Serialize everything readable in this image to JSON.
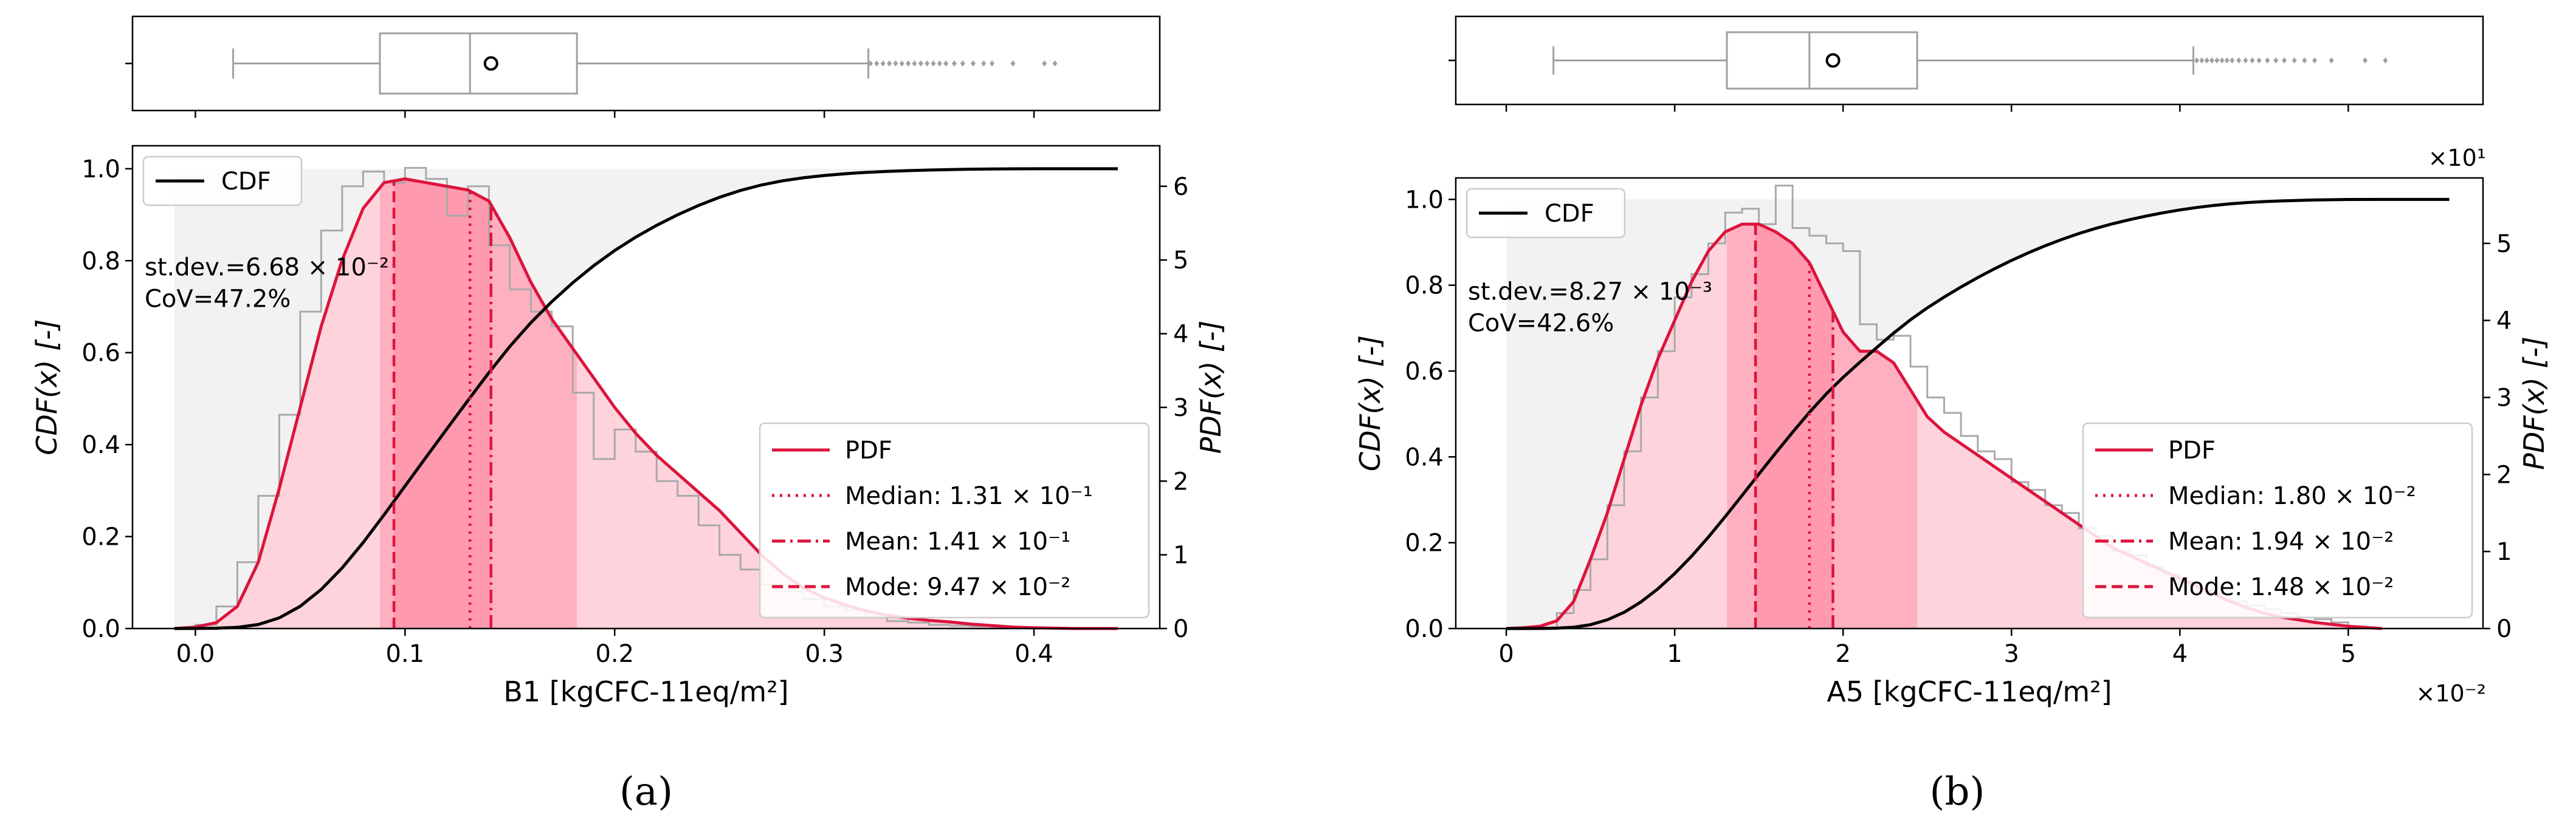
{
  "colors": {
    "pdf": "#dc143c",
    "fill_light": "#ffd3dc",
    "fill_iqr": "#ffb0c0",
    "fill_center": "#ff99ae",
    "hist": "#a9a9a9",
    "cdf": "#000000",
    "cdf_bg": "#f2f2f2",
    "box": "#a0a0a0"
  },
  "chart_data": [
    {
      "panel": "a",
      "caption": "(a)",
      "type": "histogram-kde-cdf",
      "xlabel": "B1 [kgCFC-11eq/m²]",
      "ylabel_left": "CDF(x) [-]",
      "ylabel_right": "PDF(x) [-]",
      "xlim": [
        -0.03,
        0.46
      ],
      "xticks": [
        0.0,
        0.1,
        0.2,
        0.3,
        0.4
      ],
      "xtick_labels": [
        "0.0",
        "0.1",
        "0.2",
        "0.3",
        "0.4"
      ],
      "x_exponent": "",
      "ylim_left": [
        0,
        1.05
      ],
      "yticks_left": [
        0.0,
        0.2,
        0.4,
        0.6,
        0.8,
        1.0
      ],
      "ytick_labels_left": [
        "0.0",
        "0.2",
        "0.4",
        "0.6",
        "0.8",
        "1.0"
      ],
      "ylim_right": [
        0,
        6.55
      ],
      "yticks_right": [
        0,
        1,
        2,
        3,
        4,
        5,
        6
      ],
      "ytick_labels_right": [
        "0",
        "1",
        "2",
        "3",
        "4",
        "5",
        "6"
      ],
      "right_exponent": "",
      "cdf_legend": "CDF",
      "stats_lines": [
        "st.dev.=6.68 × 10⁻²",
        "CoV=47.2%"
      ],
      "legend": [
        {
          "style": "solid",
          "label": "PDF"
        },
        {
          "style": "dotted",
          "label": "Median: 1.31 × 10⁻¹"
        },
        {
          "style": "dashdot",
          "label": "Mean: 1.41 × 10⁻¹"
        },
        {
          "style": "dashed",
          "label": "Mode: 9.47 × 10⁻²"
        }
      ],
      "median": 0.131,
      "mean": 0.141,
      "mode": 0.0947,
      "q1": 0.088,
      "q3": 0.182,
      "data_max": 0.44,
      "box": {
        "whisker_low": 0.018,
        "q1": 0.088,
        "median": 0.131,
        "q3": 0.182,
        "whisker_high": 0.321,
        "mean": 0.141,
        "outliers": [
          0.322,
          0.325,
          0.328,
          0.331,
          0.334,
          0.337,
          0.34,
          0.343,
          0.346,
          0.349,
          0.352,
          0.355,
          0.358,
          0.362,
          0.366,
          0.371,
          0.376,
          0.38,
          0.39,
          0.405,
          0.41
        ]
      },
      "pdf_x": [
        -0.01,
        0.0,
        0.01,
        0.02,
        0.03,
        0.04,
        0.05,
        0.06,
        0.07,
        0.08,
        0.09,
        0.1,
        0.11,
        0.12,
        0.13,
        0.14,
        0.15,
        0.16,
        0.17,
        0.18,
        0.19,
        0.2,
        0.21,
        0.22,
        0.23,
        0.24,
        0.25,
        0.26,
        0.27,
        0.28,
        0.29,
        0.3,
        0.31,
        0.32,
        0.33,
        0.34,
        0.35,
        0.36,
        0.37,
        0.38,
        0.39,
        0.4,
        0.41,
        0.42,
        0.43,
        0.44
      ],
      "pdf_y": [
        0.0,
        0.02,
        0.08,
        0.3,
        0.9,
        1.9,
        3.0,
        4.1,
        5.0,
        5.7,
        6.05,
        6.1,
        6.05,
        6.0,
        5.95,
        5.8,
        5.3,
        4.7,
        4.2,
        3.8,
        3.4,
        3.0,
        2.65,
        2.35,
        2.1,
        1.85,
        1.6,
        1.3,
        1.0,
        0.75,
        0.55,
        0.42,
        0.32,
        0.24,
        0.18,
        0.14,
        0.11,
        0.09,
        0.06,
        0.04,
        0.02,
        0.01,
        0.005,
        0.0,
        0.0,
        0.0
      ],
      "hist_edges": [
        0.0,
        0.01,
        0.02,
        0.03,
        0.04,
        0.05,
        0.06,
        0.07,
        0.08,
        0.09,
        0.1,
        0.11,
        0.12,
        0.13,
        0.14,
        0.15,
        0.16,
        0.17,
        0.18,
        0.19,
        0.2,
        0.21,
        0.22,
        0.23,
        0.24,
        0.25,
        0.26,
        0.27,
        0.28,
        0.29,
        0.3,
        0.31,
        0.32,
        0.33,
        0.34,
        0.35,
        0.36,
        0.37,
        0.38,
        0.39,
        0.4
      ],
      "hist_y": [
        0.05,
        0.3,
        0.9,
        1.8,
        2.9,
        4.3,
        5.4,
        6.0,
        6.2,
        6.05,
        6.25,
        6.1,
        5.6,
        6.0,
        5.2,
        4.6,
        4.3,
        4.1,
        3.2,
        2.3,
        2.7,
        2.4,
        2.0,
        1.8,
        1.4,
        1.0,
        0.8,
        0.6,
        0.5,
        0.4,
        0.3,
        0.25,
        0.15,
        0.1,
        0.08,
        0.05,
        0.04,
        0.03,
        0.02,
        0.01
      ]
    },
    {
      "panel": "b",
      "caption": "(b)",
      "type": "histogram-kde-cdf",
      "xlabel": "A5 [kgCFC-11eq/m²]",
      "ylabel_left": "CDF(x) [-]",
      "ylabel_right": "PDF(x) [-]",
      "xlim": [
        -0.3,
        5.8
      ],
      "xticks": [
        0,
        1,
        2,
        3,
        4,
        5
      ],
      "xtick_labels": [
        "0",
        "1",
        "2",
        "3",
        "4",
        "5"
      ],
      "x_exponent": "×10⁻²",
      "ylim_left": [
        0,
        1.05
      ],
      "yticks_left": [
        0.0,
        0.2,
        0.4,
        0.6,
        0.8,
        1.0
      ],
      "ytick_labels_left": [
        "0.0",
        "0.2",
        "0.4",
        "0.6",
        "0.8",
        "1.0"
      ],
      "ylim_right": [
        0,
        5.85
      ],
      "yticks_right": [
        0,
        1,
        2,
        3,
        4,
        5
      ],
      "ytick_labels_right": [
        "0",
        "1",
        "2",
        "3",
        "4",
        "5"
      ],
      "right_exponent": "×10¹",
      "cdf_legend": "CDF",
      "stats_lines": [
        "st.dev.=8.27 × 10⁻³",
        "CoV=42.6%"
      ],
      "legend": [
        {
          "style": "solid",
          "label": "PDF"
        },
        {
          "style": "dotted",
          "label": "Median: 1.80 × 10⁻²"
        },
        {
          "style": "dashdot",
          "label": "Mean: 1.94 × 10⁻²"
        },
        {
          "style": "dashed",
          "label": "Mode: 1.48 × 10⁻²"
        }
      ],
      "median": 1.8,
      "mean": 1.94,
      "mode": 1.48,
      "q1": 1.31,
      "q3": 2.44,
      "data_max": 5.6,
      "box": {
        "whisker_low": 0.28,
        "q1": 1.31,
        "median": 1.8,
        "q3": 2.44,
        "whisker_high": 4.08,
        "mean": 1.94,
        "outliers": [
          4.1,
          4.13,
          4.16,
          4.19,
          4.22,
          4.25,
          4.28,
          4.31,
          4.35,
          4.39,
          4.43,
          4.47,
          4.52,
          4.57,
          4.62,
          4.68,
          4.74,
          4.8,
          4.9,
          5.1,
          5.22
        ]
      },
      "pdf_x": [
        0.0,
        0.1,
        0.2,
        0.3,
        0.4,
        0.5,
        0.6,
        0.7,
        0.8,
        0.9,
        1.0,
        1.1,
        1.2,
        1.3,
        1.4,
        1.5,
        1.6,
        1.7,
        1.8,
        1.9,
        2.0,
        2.1,
        2.2,
        2.3,
        2.4,
        2.5,
        2.6,
        2.7,
        2.8,
        2.9,
        3.0,
        3.1,
        3.2,
        3.3,
        3.4,
        3.5,
        3.6,
        3.7,
        3.8,
        3.9,
        4.0,
        4.1,
        4.2,
        4.3,
        4.4,
        4.5,
        4.6,
        4.8,
        5.0,
        5.2
      ],
      "pdf_y": [
        0.0,
        0.01,
        0.03,
        0.1,
        0.35,
        0.9,
        1.5,
        2.2,
        2.9,
        3.5,
        4.0,
        4.5,
        4.9,
        5.15,
        5.25,
        5.25,
        5.15,
        5.0,
        4.75,
        4.3,
        3.85,
        3.6,
        3.6,
        3.45,
        3.1,
        2.75,
        2.55,
        2.4,
        2.25,
        2.1,
        1.95,
        1.8,
        1.65,
        1.5,
        1.35,
        1.2,
        1.05,
        0.95,
        0.85,
        0.75,
        0.65,
        0.55,
        0.45,
        0.35,
        0.27,
        0.2,
        0.15,
        0.08,
        0.03,
        0.0
      ],
      "hist_edges": [
        0.3,
        0.4,
        0.5,
        0.6,
        0.7,
        0.8,
        0.9,
        1.0,
        1.1,
        1.2,
        1.3,
        1.4,
        1.5,
        1.6,
        1.7,
        1.8,
        1.9,
        2.0,
        2.1,
        2.2,
        2.3,
        2.4,
        2.5,
        2.6,
        2.7,
        2.8,
        2.9,
        3.0,
        3.1,
        3.2,
        3.3,
        3.4,
        3.5,
        3.6,
        3.7,
        3.8,
        3.9,
        4.0,
        4.1,
        4.2,
        4.3,
        4.4,
        4.5,
        4.6,
        4.7,
        4.8,
        4.9,
        5.0
      ],
      "hist_y": [
        0.2,
        0.5,
        0.9,
        1.6,
        2.3,
        3.0,
        3.6,
        4.3,
        4.6,
        5.0,
        5.4,
        5.45,
        5.25,
        5.75,
        5.2,
        5.1,
        5.0,
        4.9,
        3.95,
        3.75,
        3.8,
        3.4,
        3.0,
        2.8,
        2.5,
        2.3,
        2.2,
        1.9,
        1.8,
        1.6,
        1.5,
        1.3,
        1.2,
        1.0,
        0.95,
        0.8,
        0.7,
        0.6,
        0.5,
        0.45,
        0.35,
        0.3,
        0.25,
        0.2,
        0.15,
        0.12,
        0.08
      ]
    }
  ]
}
